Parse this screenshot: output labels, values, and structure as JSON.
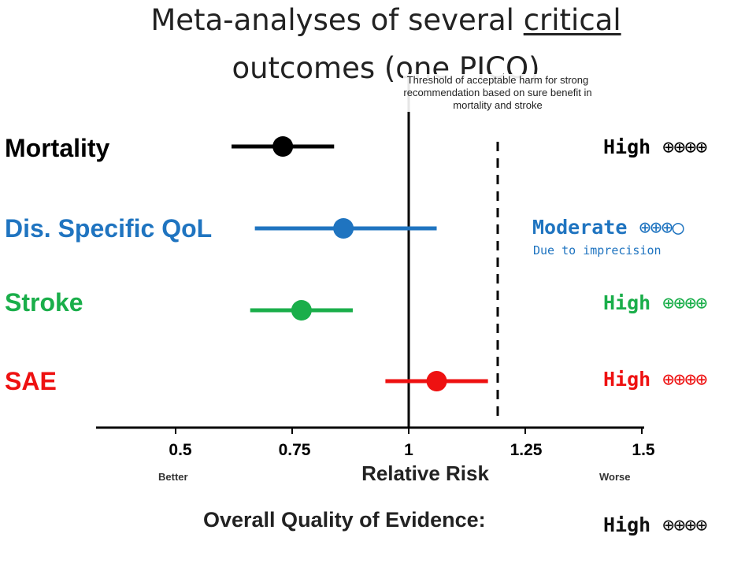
{
  "title": {
    "line1_prefix": "Meta-analyses of several ",
    "line1_underlined": "critical",
    "line2": "outcomes (one PICO)"
  },
  "threshold_note": "Threshold of acceptable harm for strong recommendation based on sure benefit in mortality and stroke",
  "outcomes": [
    {
      "label": "Mortality",
      "color": "#000000",
      "quality": "High",
      "quality_symbols": "⊕⊕⊕⊕",
      "note": ""
    },
    {
      "label": "Dis. Specific QoL",
      "color": "#1f74c0",
      "quality": "Moderate",
      "quality_symbols": "⊕⊕⊕○",
      "note": "Due to imprecision"
    },
    {
      "label": "Stroke",
      "color": "#1aae4a",
      "quality": "High",
      "quality_symbols": "⊕⊕⊕⊕",
      "note": ""
    },
    {
      "label": "SAE",
      "color": "#ee1111",
      "quality": "High",
      "quality_symbols": "⊕⊕⊕⊕",
      "note": ""
    }
  ],
  "axis": {
    "title": "Relative Risk",
    "ticks": [
      "0.5",
      "0.75",
      "1",
      "1.25",
      "1.5"
    ],
    "better_label": "Better",
    "worse_label": "Worse"
  },
  "overall": {
    "label": "Overall Quality of Evidence:",
    "quality": "High",
    "quality_symbols": "⊕⊕⊕⊕"
  },
  "chart_data": {
    "type": "scatter",
    "xlabel": "Relative Risk",
    "xlim": [
      0.33,
      1.5
    ],
    "ticks": [
      0.5,
      0.75,
      1,
      1.25,
      1.5
    ],
    "null_line": 1.0,
    "threshold_line": 1.19,
    "series": [
      {
        "name": "Mortality",
        "point": 0.73,
        "ci": [
          0.62,
          0.84
        ],
        "color": "#000000"
      },
      {
        "name": "Dis. Specific QoL",
        "point": 0.86,
        "ci": [
          0.67,
          1.06
        ],
        "color": "#1f74c0"
      },
      {
        "name": "Stroke",
        "point": 0.77,
        "ci": [
          0.66,
          0.88
        ],
        "color": "#1aae4a"
      },
      {
        "name": "SAE",
        "point": 1.06,
        "ci": [
          0.95,
          1.17
        ],
        "color": "#ee1111"
      }
    ]
  }
}
